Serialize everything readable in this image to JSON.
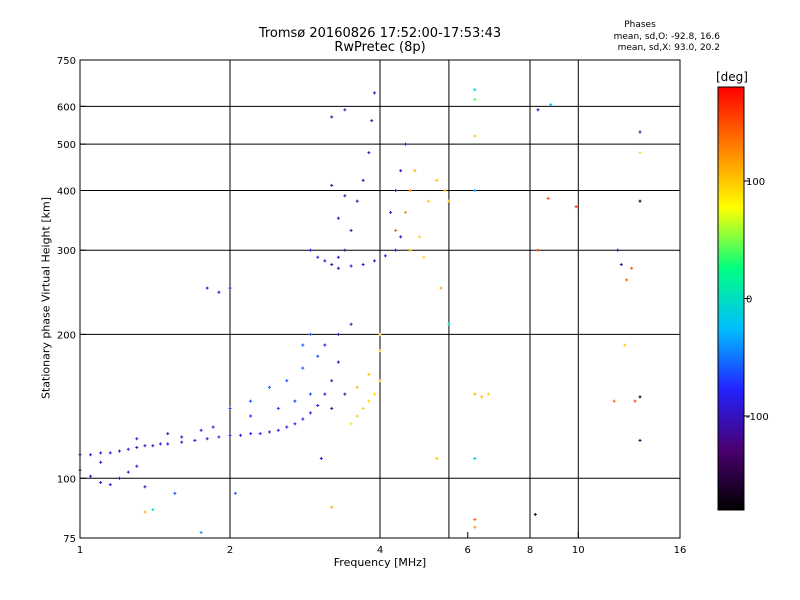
{
  "header": {
    "title_line1": "Tromsø 20160826 17:52:00-17:53:43",
    "title_line2": "RwPretec (8p)",
    "phases_title": "Phases",
    "phases_o": "mean, sd,O: -92.8, 16.6",
    "phases_x": "mean, sd,X:  93.0, 20.2"
  },
  "colorbar": {
    "unit": "[deg]",
    "range": [
      -180,
      180
    ],
    "ticks": [
      {
        "value": 100,
        "label": "100"
      },
      {
        "value": 0,
        "label": "0"
      },
      {
        "value": -100,
        "label": "-100"
      }
    ],
    "colormap": [
      "#000000",
      "#4a0070",
      "#2222ff",
      "#00bfff",
      "#00ff80",
      "#ffff00",
      "#ff8000",
      "#ff0000"
    ]
  },
  "chart_data": {
    "type": "scatter",
    "title": "Tromsø 20160826 17:52:00-17:53:43",
    "subtitle": "RwPretec (8p)",
    "xlabel": "Frequency [MHz]",
    "ylabel": "Stationary phase Virtual Height [km]",
    "x_scale": "log",
    "y_scale": "log",
    "xlim": [
      1,
      16
    ],
    "ylim": [
      75,
      750
    ],
    "x_ticks": [
      {
        "value": 1,
        "label": "1"
      },
      {
        "value": 2,
        "label": "2"
      },
      {
        "value": 4,
        "label": "4"
      },
      {
        "value": 6,
        "label": "6"
      },
      {
        "value": 8,
        "label": "8"
      },
      {
        "value": 10,
        "label": "10"
      },
      {
        "value": 16,
        "label": "16"
      }
    ],
    "y_ticks": [
      {
        "value": 75,
        "label": "75"
      },
      {
        "value": 100,
        "label": "100"
      },
      {
        "value": 200,
        "label": "200"
      },
      {
        "value": 300,
        "label": "300"
      },
      {
        "value": 400,
        "label": "400"
      },
      {
        "value": 500,
        "label": "500"
      },
      {
        "value": 600,
        "label": "600"
      },
      {
        "value": 750,
        "label": "750"
      }
    ],
    "x_grid": [
      2,
      4,
      5.5,
      8,
      10
    ],
    "y_grid": [
      100,
      200,
      300,
      400,
      500,
      600
    ],
    "grid": true,
    "color_by": "phase [deg]",
    "series": [
      {
        "values": [
          {
            "x": 1.0,
            "y": 112,
            "phase": -95
          },
          {
            "x": 1.05,
            "y": 112,
            "phase": -95
          },
          {
            "x": 1.1,
            "y": 113,
            "phase": -95
          },
          {
            "x": 1.15,
            "y": 113,
            "phase": -100
          },
          {
            "x": 1.2,
            "y": 114,
            "phase": -95
          },
          {
            "x": 1.25,
            "y": 115,
            "phase": -90
          },
          {
            "x": 1.3,
            "y": 116,
            "phase": -95
          },
          {
            "x": 1.35,
            "y": 117,
            "phase": -100
          },
          {
            "x": 1.4,
            "y": 117,
            "phase": -95
          },
          {
            "x": 1.45,
            "y": 118,
            "phase": -90
          },
          {
            "x": 1.5,
            "y": 118,
            "phase": -95
          },
          {
            "x": 1.6,
            "y": 119,
            "phase": -95
          },
          {
            "x": 1.7,
            "y": 120,
            "phase": -90
          },
          {
            "x": 1.8,
            "y": 121,
            "phase": -95
          },
          {
            "x": 1.9,
            "y": 122,
            "phase": -90
          },
          {
            "x": 2.0,
            "y": 123,
            "phase": -90
          },
          {
            "x": 2.1,
            "y": 123,
            "phase": -85
          },
          {
            "x": 2.2,
            "y": 124,
            "phase": -90
          },
          {
            "x": 2.3,
            "y": 124,
            "phase": -85
          },
          {
            "x": 2.4,
            "y": 125,
            "phase": -90
          },
          {
            "x": 2.5,
            "y": 126,
            "phase": -85
          },
          {
            "x": 2.6,
            "y": 128,
            "phase": -90
          },
          {
            "x": 2.7,
            "y": 130,
            "phase": -85
          },
          {
            "x": 2.8,
            "y": 133,
            "phase": -90
          },
          {
            "x": 2.9,
            "y": 137,
            "phase": -85
          },
          {
            "x": 3.0,
            "y": 142,
            "phase": -90
          },
          {
            "x": 3.1,
            "y": 150,
            "phase": -95
          },
          {
            "x": 3.2,
            "y": 160,
            "phase": -95
          },
          {
            "x": 3.3,
            "y": 175,
            "phase": -100
          },
          {
            "x": 1.0,
            "y": 104,
            "phase": -95
          },
          {
            "x": 1.05,
            "y": 101,
            "phase": -100
          },
          {
            "x": 1.1,
            "y": 98,
            "phase": -95
          },
          {
            "x": 1.15,
            "y": 97,
            "phase": -100
          },
          {
            "x": 1.2,
            "y": 100,
            "phase": -95
          },
          {
            "x": 1.25,
            "y": 103,
            "phase": -90
          },
          {
            "x": 1.3,
            "y": 106,
            "phase": -95
          },
          {
            "x": 1.35,
            "y": 96,
            "phase": -100
          },
          {
            "x": 1.1,
            "y": 108,
            "phase": -95
          },
          {
            "x": 1.3,
            "y": 121,
            "phase": -95
          },
          {
            "x": 1.5,
            "y": 124,
            "phase": -100
          },
          {
            "x": 1.6,
            "y": 122,
            "phase": -95
          },
          {
            "x": 1.75,
            "y": 126,
            "phase": -90
          },
          {
            "x": 1.85,
            "y": 128,
            "phase": -95
          },
          {
            "x": 2.0,
            "y": 140,
            "phase": -70
          },
          {
            "x": 2.2,
            "y": 145,
            "phase": -65
          },
          {
            "x": 2.4,
            "y": 155,
            "phase": -60
          },
          {
            "x": 2.6,
            "y": 160,
            "phase": -65
          },
          {
            "x": 2.8,
            "y": 170,
            "phase": -60
          },
          {
            "x": 3.0,
            "y": 180,
            "phase": -65
          },
          {
            "x": 2.2,
            "y": 135,
            "phase": -75
          },
          {
            "x": 2.5,
            "y": 140,
            "phase": -70
          },
          {
            "x": 2.7,
            "y": 145,
            "phase": -70
          },
          {
            "x": 2.9,
            "y": 150,
            "phase": -65
          },
          {
            "x": 2.8,
            "y": 190,
            "phase": -60
          },
          {
            "x": 2.9,
            "y": 200,
            "phase": -55
          },
          {
            "x": 3.1,
            "y": 190,
            "phase": -95
          },
          {
            "x": 3.3,
            "y": 200,
            "phase": -100
          },
          {
            "x": 3.5,
            "y": 210,
            "phase": -100
          },
          {
            "x": 3.2,
            "y": 140,
            "phase": -110
          },
          {
            "x": 3.4,
            "y": 150,
            "phase": -105
          },
          {
            "x": 3.5,
            "y": 130,
            "phase": 90
          },
          {
            "x": 3.6,
            "y": 135,
            "phase": 95
          },
          {
            "x": 3.7,
            "y": 140,
            "phase": 100
          },
          {
            "x": 3.8,
            "y": 145,
            "phase": 95
          },
          {
            "x": 3.9,
            "y": 150,
            "phase": 90
          },
          {
            "x": 4.0,
            "y": 160,
            "phase": 100
          },
          {
            "x": 3.6,
            "y": 155,
            "phase": 110
          },
          {
            "x": 3.8,
            "y": 165,
            "phase": 105
          },
          {
            "x": 4.0,
            "y": 185,
            "phase": 95
          },
          {
            "x": 4.0,
            "y": 200,
            "phase": 90
          },
          {
            "x": 1.8,
            "y": 250,
            "phase": -95
          },
          {
            "x": 1.9,
            "y": 245,
            "phase": -100
          },
          {
            "x": 2.0,
            "y": 250,
            "phase": -95
          },
          {
            "x": 2.9,
            "y": 300,
            "phase": -80
          },
          {
            "x": 3.0,
            "y": 290,
            "phase": -90
          },
          {
            "x": 3.1,
            "y": 285,
            "phase": -100
          },
          {
            "x": 3.2,
            "y": 280,
            "phase": -100
          },
          {
            "x": 3.3,
            "y": 275,
            "phase": -105
          },
          {
            "x": 3.5,
            "y": 278,
            "phase": -100
          },
          {
            "x": 3.7,
            "y": 280,
            "phase": -95
          },
          {
            "x": 3.9,
            "y": 285,
            "phase": -100
          },
          {
            "x": 4.1,
            "y": 292,
            "phase": -95
          },
          {
            "x": 4.3,
            "y": 300,
            "phase": -100
          },
          {
            "x": 4.4,
            "y": 320,
            "phase": -100
          },
          {
            "x": 3.3,
            "y": 290,
            "phase": -100
          },
          {
            "x": 3.4,
            "y": 300,
            "phase": -110
          },
          {
            "x": 3.5,
            "y": 330,
            "phase": -105
          },
          {
            "x": 3.6,
            "y": 380,
            "phase": -110
          },
          {
            "x": 3.7,
            "y": 420,
            "phase": -105
          },
          {
            "x": 3.8,
            "y": 480,
            "phase": -100
          },
          {
            "x": 3.85,
            "y": 560,
            "phase": -110
          },
          {
            "x": 3.9,
            "y": 640,
            "phase": -100
          },
          {
            "x": 3.3,
            "y": 350,
            "phase": -100
          },
          {
            "x": 3.4,
            "y": 390,
            "phase": -105
          },
          {
            "x": 3.2,
            "y": 410,
            "phase": -110
          },
          {
            "x": 3.2,
            "y": 570,
            "phase": -105
          },
          {
            "x": 3.4,
            "y": 590,
            "phase": -100
          },
          {
            "x": 4.2,
            "y": 360,
            "phase": -95
          },
          {
            "x": 4.3,
            "y": 400,
            "phase": -100
          },
          {
            "x": 4.4,
            "y": 440,
            "phase": -100
          },
          {
            "x": 4.5,
            "y": 500,
            "phase": -95
          },
          {
            "x": 4.3,
            "y": 330,
            "phase": 140
          },
          {
            "x": 4.5,
            "y": 360,
            "phase": 120
          },
          {
            "x": 4.6,
            "y": 400,
            "phase": 130
          },
          {
            "x": 4.7,
            "y": 440,
            "phase": 110
          },
          {
            "x": 4.8,
            "y": 320,
            "phase": 95
          },
          {
            "x": 5.0,
            "y": 380,
            "phase": 100
          },
          {
            "x": 5.2,
            "y": 420,
            "phase": 105
          },
          {
            "x": 5.4,
            "y": 400,
            "phase": 110
          },
          {
            "x": 5.5,
            "y": 380,
            "phase": 100
          },
          {
            "x": 4.6,
            "y": 300,
            "phase": 100
          },
          {
            "x": 4.9,
            "y": 290,
            "phase": 95
          },
          {
            "x": 5.3,
            "y": 250,
            "phase": 110
          },
          {
            "x": 5.5,
            "y": 210,
            "phase": 0
          },
          {
            "x": 5.2,
            "y": 110,
            "phase": 100
          },
          {
            "x": 6.2,
            "y": 650,
            "phase": -10
          },
          {
            "x": 6.2,
            "y": 620,
            "phase": 40
          },
          {
            "x": 6.2,
            "y": 520,
            "phase": 100
          },
          {
            "x": 6.2,
            "y": 400,
            "phase": -40
          },
          {
            "x": 6.2,
            "y": 150,
            "phase": 110
          },
          {
            "x": 6.4,
            "y": 148,
            "phase": 100
          },
          {
            "x": 6.6,
            "y": 150,
            "phase": 95
          },
          {
            "x": 6.2,
            "y": 110,
            "phase": -20
          },
          {
            "x": 6.2,
            "y": 82,
            "phase": 140
          },
          {
            "x": 6.2,
            "y": 79,
            "phase": 120
          },
          {
            "x": 8.3,
            "y": 590,
            "phase": -110
          },
          {
            "x": 8.8,
            "y": 605,
            "phase": -30
          },
          {
            "x": 8.7,
            "y": 385,
            "phase": 150
          },
          {
            "x": 9.9,
            "y": 370,
            "phase": 160
          },
          {
            "x": 8.3,
            "y": 300,
            "phase": 150
          },
          {
            "x": 8.2,
            "y": 84,
            "phase": -180
          },
          {
            "x": 12.0,
            "y": 300,
            "phase": -120
          },
          {
            "x": 12.2,
            "y": 280,
            "phase": -110
          },
          {
            "x": 12.5,
            "y": 260,
            "phase": 140
          },
          {
            "x": 12.8,
            "y": 275,
            "phase": 150
          },
          {
            "x": 12.4,
            "y": 190,
            "phase": 100
          },
          {
            "x": 11.8,
            "y": 145,
            "phase": 140
          },
          {
            "x": 13.3,
            "y": 530,
            "phase": -110
          },
          {
            "x": 13.3,
            "y": 480,
            "phase": 60
          },
          {
            "x": 13.3,
            "y": 380,
            "phase": -180
          },
          {
            "x": 13.3,
            "y": 148,
            "phase": -180
          },
          {
            "x": 13.3,
            "y": 120,
            "phase": -140
          },
          {
            "x": 13.0,
            "y": 145,
            "phase": 150
          },
          {
            "x": 1.35,
            "y": 85,
            "phase": 110
          },
          {
            "x": 1.4,
            "y": 86,
            "phase": 10
          },
          {
            "x": 1.55,
            "y": 93,
            "phase": -60
          },
          {
            "x": 1.75,
            "y": 77,
            "phase": -40
          },
          {
            "x": 2.05,
            "y": 93,
            "phase": -60
          },
          {
            "x": 3.05,
            "y": 110,
            "phase": -95
          },
          {
            "x": 3.2,
            "y": 87,
            "phase": 110
          }
        ]
      }
    ]
  }
}
